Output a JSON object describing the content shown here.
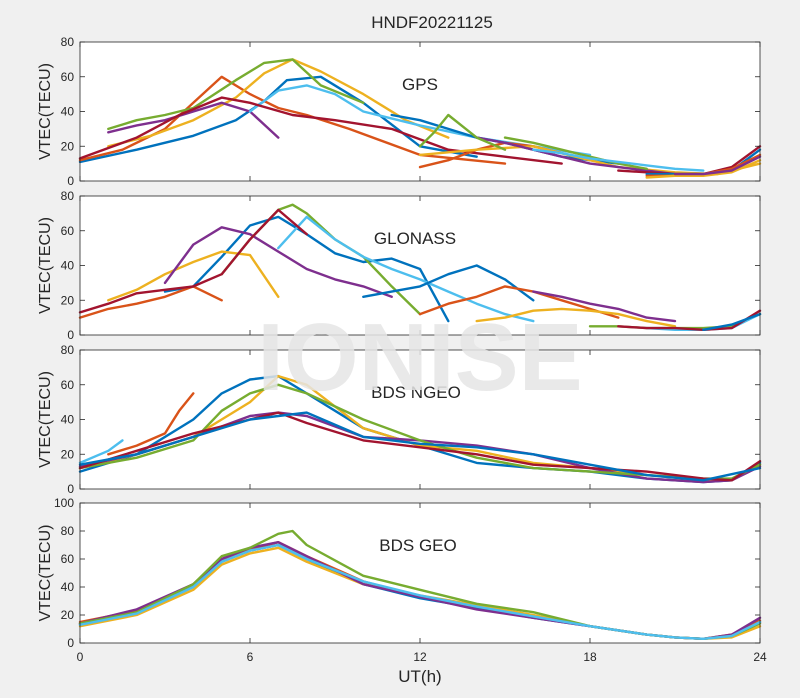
{
  "figure_title": "HNDF20221125",
  "watermark": "IONISE",
  "colors": [
    "#0072bd",
    "#d95319",
    "#edb120",
    "#7e2f8e",
    "#77ac30",
    "#4dbeee",
    "#a2142f"
  ],
  "chart_data": [
    {
      "type": "line",
      "label": "GPS",
      "ylabel": "VTEC(TECU)",
      "xlabel": "",
      "xlim": [
        0,
        24
      ],
      "ylim": [
        0,
        80
      ],
      "xticks": [
        0,
        6,
        12,
        18,
        24
      ],
      "yticks": [
        0,
        20,
        40,
        60,
        80
      ],
      "grid": false,
      "series": [
        {
          "x": [
            0,
            2,
            4,
            5.5,
            6.5,
            7.3,
            8.5,
            10,
            12,
            14
          ],
          "y": [
            11,
            18,
            26,
            35,
            46,
            58,
            60,
            45,
            20,
            14
          ]
        },
        {
          "x": [
            0,
            1.5,
            3,
            4,
            5,
            6,
            7,
            8,
            9.5,
            12,
            15
          ],
          "y": [
            12,
            18,
            30,
            45,
            60,
            50,
            42,
            38,
            30,
            15,
            10
          ]
        },
        {
          "x": [
            1,
            2.5,
            4,
            5.5,
            6.5,
            7.5,
            8.5,
            10,
            11.5,
            13
          ],
          "y": [
            20,
            26,
            35,
            48,
            62,
            70,
            63,
            50,
            35,
            25
          ]
        },
        {
          "x": [
            1,
            2,
            3,
            4,
            5,
            6,
            7
          ],
          "y": [
            28,
            32,
            35,
            40,
            45,
            40,
            25
          ]
        },
        {
          "x": [
            1,
            2,
            3,
            4,
            5.5,
            6.5,
            7.5,
            8.5,
            10
          ],
          "y": [
            30,
            35,
            38,
            42,
            58,
            68,
            70,
            55,
            45
          ]
        },
        {
          "x": [
            6,
            7,
            8,
            9,
            10,
            12,
            14,
            16,
            18
          ],
          "y": [
            40,
            52,
            55,
            50,
            40,
            32,
            25,
            20,
            15
          ]
        },
        {
          "x": [
            0,
            2,
            3.5,
            5,
            6,
            7.5,
            9,
            11,
            13,
            15,
            17
          ],
          "y": [
            13,
            25,
            38,
            48,
            45,
            38,
            35,
            30,
            18,
            14,
            10
          ]
        },
        {
          "x": [
            11,
            12,
            13,
            14,
            15,
            16,
            17,
            18,
            19
          ],
          "y": [
            38,
            35,
            30,
            25,
            22,
            18,
            14,
            12,
            10
          ]
        },
        {
          "x": [
            12,
            13,
            14,
            15,
            16,
            17,
            18
          ],
          "y": [
            8,
            12,
            18,
            22,
            20,
            16,
            12
          ]
        },
        {
          "x": [
            12,
            14,
            16,
            17.5,
            19,
            21,
            22.5,
            24
          ],
          "y": [
            15,
            18,
            20,
            14,
            8,
            5,
            4,
            10
          ]
        },
        {
          "x": [
            14,
            15,
            16,
            17,
            18,
            19,
            20,
            21
          ],
          "y": [
            25,
            22,
            18,
            14,
            10,
            8,
            6,
            4
          ]
        },
        {
          "x": [
            15,
            16,
            17,
            18,
            19,
            20
          ],
          "y": [
            25,
            22,
            18,
            14,
            10,
            7
          ]
        },
        {
          "x": [
            16,
            17,
            18,
            19,
            20,
            21,
            22
          ],
          "y": [
            18,
            16,
            13,
            11,
            9,
            7,
            6
          ]
        },
        {
          "x": [
            19,
            20,
            21,
            22,
            23,
            24
          ],
          "y": [
            6,
            5,
            4,
            4,
            8,
            20
          ]
        },
        {
          "x": [
            20,
            21,
            22,
            23,
            24
          ],
          "y": [
            4,
            4,
            4,
            6,
            18
          ]
        },
        {
          "x": [
            20,
            21,
            22,
            23,
            24
          ],
          "y": [
            3,
            3,
            4,
            7,
            15
          ]
        },
        {
          "x": [
            20,
            21,
            22,
            23,
            24
          ],
          "y": [
            2,
            3,
            3,
            5,
            12
          ]
        },
        {
          "x": [
            21,
            22,
            23,
            24
          ],
          "y": [
            4,
            4,
            6,
            14
          ]
        },
        {
          "x": [
            12,
            12.5,
            13,
            14,
            15
          ],
          "y": [
            20,
            28,
            38,
            25,
            18
          ]
        }
      ]
    },
    {
      "type": "line",
      "label": "GLONASS",
      "ylabel": "VTEC(TECU)",
      "xlabel": "",
      "xlim": [
        0,
        24
      ],
      "ylim": [
        0,
        80
      ],
      "xticks": [
        0,
        6,
        12,
        18,
        24
      ],
      "yticks": [
        0,
        20,
        40,
        60,
        80
      ],
      "grid": false,
      "series": [
        {
          "x": [
            3,
            4,
            5,
            6,
            7,
            8,
            9,
            10,
            11,
            12,
            13
          ],
          "y": [
            25,
            28,
            45,
            63,
            68,
            58,
            47,
            42,
            44,
            38,
            8
          ]
        },
        {
          "x": [
            0,
            1,
            2,
            3,
            4,
            5
          ],
          "y": [
            10,
            15,
            18,
            22,
            28,
            20
          ]
        },
        {
          "x": [
            1,
            2,
            3,
            4,
            5,
            6,
            7
          ],
          "y": [
            20,
            26,
            35,
            42,
            48,
            46,
            22
          ]
        },
        {
          "x": [
            3,
            4,
            5,
            6,
            7,
            8,
            9,
            10,
            11
          ],
          "y": [
            30,
            52,
            62,
            58,
            48,
            38,
            32,
            28,
            22
          ]
        },
        {
          "x": [
            5,
            6,
            7,
            7.5,
            8,
            9,
            10,
            11,
            12
          ],
          "y": [
            35,
            55,
            72,
            75,
            70,
            55,
            45,
            28,
            12
          ]
        },
        {
          "x": [
            7,
            8,
            9,
            10,
            11,
            12,
            13,
            14,
            15,
            16
          ],
          "y": [
            50,
            68,
            55,
            45,
            38,
            32,
            25,
            18,
            12,
            8
          ]
        },
        {
          "x": [
            0,
            1,
            2,
            3,
            4,
            5,
            6,
            7,
            8
          ],
          "y": [
            13,
            18,
            24,
            26,
            28,
            35,
            55,
            72,
            58
          ]
        },
        {
          "x": [
            10,
            11,
            12,
            13,
            14,
            15,
            16
          ],
          "y": [
            22,
            25,
            28,
            35,
            40,
            32,
            20
          ]
        },
        {
          "x": [
            12,
            13,
            14,
            15,
            16,
            17,
            18,
            19
          ],
          "y": [
            12,
            18,
            22,
            28,
            25,
            20,
            15,
            10
          ]
        },
        {
          "x": [
            14,
            15,
            16,
            17,
            18,
            19,
            20,
            21
          ],
          "y": [
            8,
            10,
            14,
            15,
            14,
            12,
            8,
            5
          ]
        },
        {
          "x": [
            16,
            17,
            18,
            19,
            20,
            21
          ],
          "y": [
            25,
            22,
            18,
            15,
            10,
            8
          ]
        },
        {
          "x": [
            18,
            19,
            20,
            21,
            22,
            23,
            24
          ],
          "y": [
            5,
            5,
            4,
            4,
            4,
            5,
            12
          ]
        },
        {
          "x": [
            20,
            21,
            22,
            23,
            24
          ],
          "y": [
            4,
            3,
            3,
            4,
            12
          ]
        },
        {
          "x": [
            19,
            20,
            21,
            22,
            23,
            24
          ],
          "y": [
            5,
            4,
            4,
            3,
            4,
            14
          ]
        },
        {
          "x": [
            22,
            23,
            24
          ],
          "y": [
            3,
            6,
            12
          ]
        }
      ]
    },
    {
      "type": "line",
      "label": "BDS NGEO",
      "ylabel": "VTEC(TECU)",
      "xlabel": "",
      "xlim": [
        0,
        24
      ],
      "ylim": [
        0,
        80
      ],
      "xticks": [
        0,
        6,
        12,
        18,
        24
      ],
      "yticks": [
        0,
        20,
        40,
        60,
        80
      ],
      "grid": false,
      "series": [
        {
          "x": [
            0,
            2,
            4,
            5,
            6,
            7,
            8,
            10,
            12,
            14,
            16,
            18,
            20,
            22,
            23,
            24
          ],
          "y": [
            10,
            20,
            40,
            55,
            63,
            65,
            55,
            35,
            25,
            15,
            12,
            10,
            6,
            4,
            5,
            15
          ]
        },
        {
          "x": [
            1,
            2,
            3,
            3.5,
            4
          ],
          "y": [
            20,
            25,
            32,
            45,
            55
          ]
        },
        {
          "x": [
            0,
            2,
            4,
            6,
            7,
            8,
            10,
            12,
            14,
            16,
            18,
            20,
            22,
            23,
            24
          ],
          "y": [
            12,
            20,
            30,
            50,
            65,
            60,
            35,
            25,
            22,
            15,
            12,
            8,
            5,
            5,
            14
          ]
        },
        {
          "x": [
            0,
            2,
            4,
            6,
            7,
            8,
            10,
            12,
            14,
            16,
            18,
            20,
            22,
            23,
            24
          ],
          "y": [
            13,
            20,
            30,
            42,
            44,
            42,
            30,
            28,
            25,
            20,
            12,
            6,
            4,
            5,
            13
          ]
        },
        {
          "x": [
            0,
            2,
            4,
            5,
            6,
            7,
            8,
            10,
            12,
            14,
            16,
            18,
            20,
            22,
            23,
            24
          ],
          "y": [
            12,
            18,
            28,
            45,
            55,
            60,
            55,
            40,
            28,
            18,
            12,
            10,
            8,
            6,
            6,
            14
          ]
        },
        {
          "x": [
            0,
            1,
            1.5
          ],
          "y": [
            15,
            22,
            28
          ]
        },
        {
          "x": [
            0,
            2,
            4,
            6,
            7,
            8,
            10,
            12,
            14,
            16,
            18,
            20,
            22,
            23,
            24
          ],
          "y": [
            12,
            22,
            32,
            40,
            44,
            38,
            28,
            24,
            20,
            14,
            12,
            10,
            6,
            5,
            16
          ]
        },
        {
          "x": [
            0,
            2,
            4,
            6,
            7,
            8,
            10,
            12,
            14,
            16,
            18,
            20,
            22,
            24
          ],
          "y": [
            14,
            20,
            30,
            40,
            42,
            44,
            30,
            26,
            24,
            20,
            14,
            8,
            5,
            12
          ]
        }
      ]
    },
    {
      "type": "line",
      "label": "BDS GEO",
      "ylabel": "VTEC(TECU)",
      "xlabel": "UT(h)",
      "xlim": [
        0,
        24
      ],
      "ylim": [
        0,
        100
      ],
      "xticks": [
        0,
        6,
        12,
        18,
        24
      ],
      "yticks": [
        0,
        20,
        40,
        60,
        80,
        100
      ],
      "grid": false,
      "series": [
        {
          "x": [
            0,
            2,
            4,
            5,
            6,
            7,
            8,
            10,
            12,
            14,
            16,
            18,
            20,
            21,
            22,
            23,
            24
          ],
          "y": [
            13,
            22,
            40,
            58,
            66,
            70,
            60,
            42,
            32,
            25,
            18,
            12,
            6,
            4,
            3,
            5,
            15
          ]
        },
        {
          "x": [
            0,
            2,
            4,
            5,
            6,
            7,
            8,
            10,
            12,
            14,
            16,
            18,
            20,
            21,
            22,
            23,
            24
          ],
          "y": [
            15,
            23,
            42,
            60,
            67,
            72,
            62,
            44,
            33,
            26,
            19,
            12,
            6,
            4,
            3,
            6,
            16
          ]
        },
        {
          "x": [
            0,
            2,
            4,
            5,
            6,
            7,
            8,
            10,
            12,
            14,
            16,
            18,
            20,
            21,
            22,
            23,
            24
          ],
          "y": [
            12,
            20,
            38,
            56,
            64,
            68,
            58,
            42,
            34,
            27,
            20,
            12,
            6,
            4,
            3,
            4,
            12
          ]
        },
        {
          "x": [
            0,
            2,
            4,
            5,
            6,
            7,
            8,
            10,
            12,
            14,
            16,
            18,
            20,
            21,
            22,
            23,
            24
          ],
          "y": [
            14,
            24,
            42,
            60,
            68,
            72,
            62,
            42,
            33,
            24,
            18,
            12,
            6,
            4,
            3,
            6,
            18
          ]
        },
        {
          "x": [
            0,
            2,
            4,
            5,
            6,
            7,
            7.5,
            8,
            10,
            12,
            14,
            16,
            18,
            20,
            21,
            22,
            23,
            24
          ],
          "y": [
            14,
            22,
            42,
            62,
            68,
            78,
            80,
            70,
            48,
            38,
            28,
            22,
            12,
            6,
            4,
            3,
            5,
            14
          ]
        },
        {
          "x": [
            0,
            2,
            4,
            5,
            6,
            7,
            8,
            10,
            12,
            14,
            16,
            18,
            20,
            21,
            22,
            23,
            24
          ],
          "y": [
            13,
            21,
            40,
            58,
            66,
            70,
            60,
            44,
            34,
            26,
            19,
            12,
            6,
            4,
            3,
            5,
            15
          ]
        }
      ]
    }
  ]
}
